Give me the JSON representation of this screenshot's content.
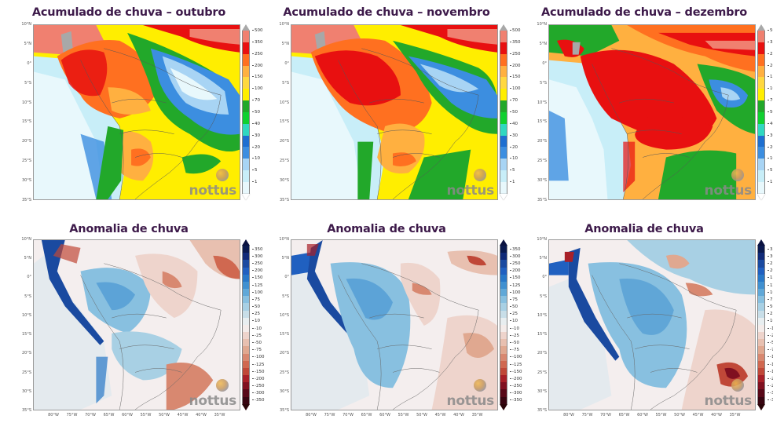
{
  "figure": {
    "top_row_titles": [
      "Acumulado de chuva – outubro",
      "Acumulado de chuva – novembro",
      "Acumulado de chuva – dezembro"
    ],
    "bottom_row_titles": [
      "Anomalia de chuva",
      "Anomalia de chuva",
      "Anomalia de chuva"
    ],
    "logo_text": "nottus",
    "lat_labels": [
      "10°N",
      "5°N",
      "0°",
      "5°S",
      "10°S",
      "15°S",
      "20°S",
      "25°S",
      "30°S",
      "35°S"
    ],
    "lon_labels": [
      "80°W",
      "75°W",
      "70°W",
      "65°W",
      "60°W",
      "55°W",
      "50°W",
      "45°W",
      "40°W",
      "35°W"
    ]
  },
  "chart_data": [
    {
      "type": "heatmap",
      "title": "Acumulado de chuva – outubro",
      "subject": "Accumulated rainfall forecast (mm) over South America / Brazil",
      "x_range": [
        "80°W",
        "35°W"
      ],
      "y_range": [
        "35°S",
        "10°N"
      ],
      "colorbar_ticks": [
        1,
        5,
        10,
        20,
        30,
        40,
        50,
        70,
        100,
        150,
        200,
        250,
        350,
        500
      ],
      "colorbar_colors": [
        "#e8f8fc",
        "#c8eef8",
        "#a8dcf4",
        "#7cc0ec",
        "#3c8ee0",
        "#1e6fd0",
        "#20c0b0",
        "#10d030",
        "#22a82a",
        "#ffe800",
        "#ffc040",
        "#ff8020",
        "#e81010",
        "#f08070",
        "#a8a8a8"
      ],
      "description": "Highest (250-350 mm) over western Amazon; 150-250 mm central Brazil; 100-150 mm southeast; low (<40 mm) over northeast Brazil and Pacific"
    },
    {
      "type": "heatmap",
      "title": "Acumulado de chuva – novembro",
      "subject": "Accumulated rainfall forecast (mm)",
      "x_range": [
        "80°W",
        "35°W"
      ],
      "y_range": [
        "35°S",
        "10°N"
      ],
      "colorbar_ticks": [
        1,
        5,
        10,
        20,
        30,
        40,
        50,
        70,
        100,
        150,
        200,
        250,
        350,
        500
      ],
      "description": "250-350 mm across much of Amazon; 200-250 mm central-west Brazil; dry northeast coast; green (70-100 mm) in south"
    },
    {
      "type": "heatmap",
      "title": "Acumulado de chuva – dezembro",
      "subject": "Accumulated rainfall forecast (mm)",
      "x_range": [
        "80°W",
        "35°W"
      ],
      "y_range": [
        "35°S",
        "10°N"
      ],
      "colorbar_ticks": [
        1,
        5,
        10,
        20,
        30,
        40,
        50,
        70,
        100,
        150,
        200,
        250,
        350,
        500
      ],
      "description": "Widespread 250-500 mm across Amazon, central Brazil and southeast; 70-100 mm in far south; 20-40 mm pocket in northeast"
    },
    {
      "type": "heatmap",
      "title": "Anomalia de chuva",
      "month": "outubro",
      "subject": "Rainfall anomaly (mm)",
      "x_range": [
        "80°W",
        "35°W"
      ],
      "y_range": [
        "35°S",
        "10°N"
      ],
      "colorbar_ticks": [
        350,
        300,
        250,
        200,
        150,
        125,
        100,
        75,
        50,
        25,
        10,
        -10,
        -25,
        -50,
        -75,
        -100,
        -125,
        -150,
        -200,
        -250,
        -300,
        -350
      ],
      "description": "Positive (blue) anomalies over Amazon and Andes; negative (red) over north/northeast Brazil and south Atlantic coast"
    },
    {
      "type": "heatmap",
      "title": "Anomalia de chuva",
      "month": "novembro",
      "subject": "Rainfall anomaly (mm)",
      "x_range": [
        "80°W",
        "35°W"
      ],
      "y_range": [
        "35°S",
        "10°N"
      ],
      "colorbar_ticks": [
        350,
        300,
        250,
        200,
        150,
        125,
        100,
        75,
        50,
        25,
        10,
        -10,
        -25,
        -50,
        -75,
        -100,
        -125,
        -150,
        -200,
        -250,
        -300,
        -350
      ],
      "description": "Positive anomalies over most of central/western Brazil; negative over northeast and Atlantic east of Brazil"
    },
    {
      "type": "heatmap",
      "title": "Anomalia de chuva",
      "month": "dezembro",
      "subject": "Rainfall anomaly (mm)",
      "x_range": [
        "80°W",
        "35°W"
      ],
      "y_range": [
        "35°S",
        "10°N"
      ],
      "colorbar_ticks": [
        350,
        300,
        250,
        200,
        150,
        125,
        100,
        75,
        50,
        25,
        10,
        -10,
        -25,
        -50,
        -75,
        -100,
        -125,
        -150,
        -200,
        -250,
        -300,
        -350
      ],
      "description": "Widespread positive anomalies across Brazil; strong negative anomaly in South Atlantic near 27°S 37°W"
    }
  ],
  "colorbars": {
    "accum": {
      "labels": [
        "500",
        "350",
        "250",
        "200",
        "150",
        "100",
        "70",
        "50",
        "40",
        "30",
        "20",
        "10",
        "5",
        "1"
      ],
      "colors": [
        "#f08070",
        "#e81010",
        "#ff7020",
        "#ffb040",
        "#ffd840",
        "#ffee00",
        "#22a82a",
        "#10d030",
        "#30d8c0",
        "#1e6fd0",
        "#3c8ee0",
        "#a8d4f4",
        "#c8eef8",
        "#e8f8fc"
      ],
      "top_tip": "#a8a8a8",
      "bottom_tip": "#ffffff"
    },
    "anom": {
      "labels": [
        "350",
        "300",
        "250",
        "200",
        "150",
        "125",
        "100",
        "75",
        "50",
        "25",
        "10",
        "-10",
        "-25",
        "-50",
        "-75",
        "-100",
        "-125",
        "-150",
        "-200",
        "-250",
        "-300",
        "-350"
      ],
      "colors": [
        "#0a1a50",
        "#102a78",
        "#1a4aa0",
        "#2060c0",
        "#2878c8",
        "#4090d0",
        "#60a8d8",
        "#88c0e0",
        "#a8d0e4",
        "#c8dee8",
        "#e8eef0",
        "#f4ecea",
        "#eed4cc",
        "#e8c0b0",
        "#e0a890",
        "#d88870",
        "#d06850",
        "#c04838",
        "#a82028",
        "#801020",
        "#580818",
        "#380410"
      ],
      "top_tip": "#0a1240",
      "bottom_tip": "#2a0408"
    }
  }
}
